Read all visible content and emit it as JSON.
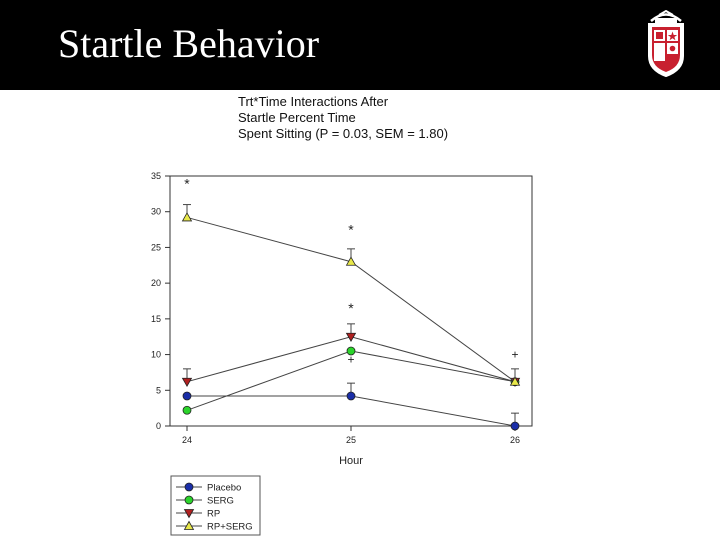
{
  "slide": {
    "title": "Startle Behavior"
  },
  "chart_data": {
    "type": "line",
    "title": "Trt*Time Interactions After\nStartle Percent Time\nSpent Sitting (P = 0.03, SEM = 1.80)",
    "xlabel": "Hour",
    "ylabel": "",
    "x": [
      24,
      25,
      26
    ],
    "x_ticks": [
      "24",
      "25",
      "26"
    ],
    "ylim": [
      0,
      35
    ],
    "y_ticks": [
      0,
      5,
      10,
      15,
      20,
      25,
      30,
      35
    ],
    "series": [
      {
        "name": "Placebo",
        "values": [
          4.2,
          4.2,
          0
        ],
        "errors": [
          0,
          1.8,
          1.8
        ],
        "marker": "circle",
        "color": "#1a2ea8"
      },
      {
        "name": "SERG",
        "values": [
          2.2,
          10.5,
          6.2
        ],
        "errors": [
          0,
          0,
          0
        ],
        "marker": "circle",
        "color": "#2bd42b"
      },
      {
        "name": "RP",
        "values": [
          6.2,
          12.5,
          6.2
        ],
        "errors": [
          1.8,
          1.8,
          1.8
        ],
        "marker": "triangle-down",
        "color": "#b02020"
      },
      {
        "name": "RP+SERG",
        "values": [
          29.2,
          23.0,
          6.2
        ],
        "errors": [
          1.8,
          1.8,
          0
        ],
        "marker": "triangle-up",
        "color": "#e8e84a"
      }
    ],
    "annotations": [
      {
        "text": "*",
        "x": 24,
        "y": 34.2
      },
      {
        "text": "*",
        "x": 25,
        "y": 27.8
      },
      {
        "text": "*",
        "x": 25,
        "y": 16.8
      },
      {
        "text": "+",
        "x": 25,
        "y": 9.3
      },
      {
        "text": "+",
        "x": 26,
        "y": 10.0
      }
    ],
    "legend_position": "bottom-left",
    "grid": false
  }
}
